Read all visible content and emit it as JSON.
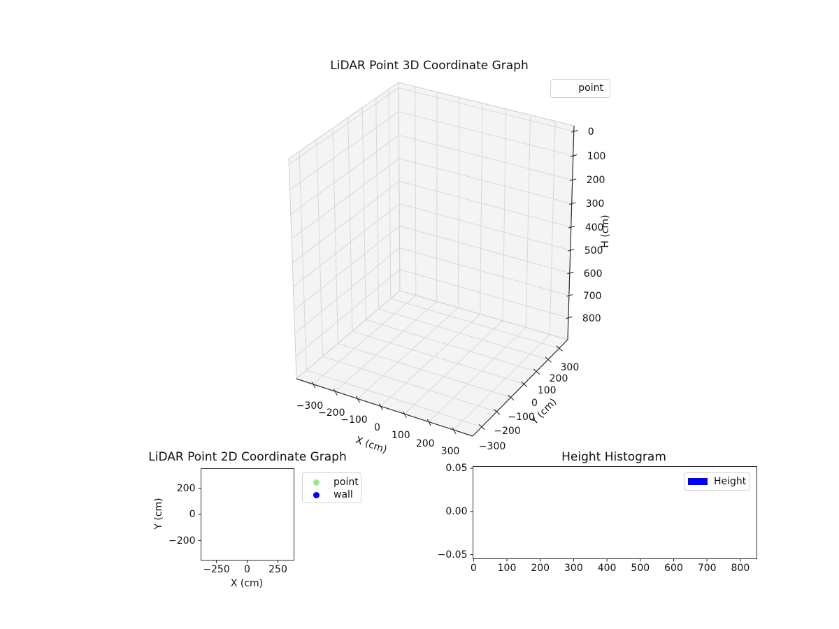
{
  "chart_data": [
    {
      "type": "scatter3d",
      "title": "LiDAR Point 3D Coordinate Graph",
      "xlabel": "X (cm)",
      "ylabel": "Y (cm)",
      "zlabel": "H (cm)",
      "xticks": [
        -300,
        -200,
        -100,
        0,
        100,
        200,
        300
      ],
      "yticks": [
        -300,
        -200,
        -100,
        0,
        100,
        200,
        300
      ],
      "zticks": [
        0,
        100,
        200,
        300,
        400,
        500,
        600,
        700,
        800
      ],
      "xtick_labels": [
        "−300",
        "−200",
        "−100",
        "0",
        "100",
        "200",
        "300"
      ],
      "ytick_labels": [
        "−300",
        "−200",
        "−100",
        "0",
        "100",
        "200",
        "300"
      ],
      "ztick_labels": [
        "0",
        "100",
        "200",
        "300",
        "400",
        "500",
        "600",
        "700",
        "800"
      ],
      "zaxis_inverted": true,
      "grid": true,
      "legend_position": "upper right",
      "legend": [
        {
          "label": "point",
          "handle": "empty"
        }
      ],
      "series": [
        {
          "name": "point",
          "points": []
        }
      ]
    },
    {
      "type": "scatter",
      "title": "LiDAR Point 2D Coordinate Graph",
      "xlabel": "X (cm)",
      "ylabel": "Y (cm)",
      "xticks": [
        -250,
        0,
        250
      ],
      "yticks": [
        -200,
        0,
        200
      ],
      "xtick_labels": [
        "−250",
        "0",
        "250"
      ],
      "ytick_labels": [
        "−200",
        "0",
        "200"
      ],
      "xlim": [
        -375,
        380
      ],
      "ylim": [
        -349,
        349
      ],
      "grid": false,
      "legend_position": "upper right outside",
      "legend": [
        {
          "label": "point",
          "color": "#90ee90"
        },
        {
          "label": "wall",
          "color": "#0000ff"
        }
      ],
      "series": [
        {
          "name": "point",
          "color": "#90ee90",
          "points": []
        },
        {
          "name": "wall",
          "color": "#0000ff",
          "points": []
        }
      ]
    },
    {
      "type": "bar",
      "title": "Height Histogram",
      "xlabel": "",
      "ylabel": "",
      "xticks": [
        0,
        100,
        200,
        300,
        400,
        500,
        600,
        700,
        800
      ],
      "yticks": [
        -0.05,
        0.0,
        0.05
      ],
      "xtick_labels": [
        "0",
        "100",
        "200",
        "300",
        "400",
        "500",
        "600",
        "700",
        "800"
      ],
      "ytick_labels": [
        "−0.05",
        "0.00",
        "0.05"
      ],
      "xlim": [
        -2,
        850
      ],
      "ylim": [
        -0.053,
        0.052
      ],
      "grid": false,
      "legend_position": "upper right",
      "legend": [
        {
          "label": "Height",
          "color": "#0000ff"
        }
      ],
      "series": [
        {
          "name": "Height",
          "color": "#0000ff",
          "values": []
        }
      ]
    }
  ],
  "colors": {
    "pane_fill": "#f4f4f4",
    "grid_line": "#d8d8d8",
    "pane_edge": "#cfcfcf",
    "axis_line": "#2e2e2e",
    "text": "#111111"
  }
}
